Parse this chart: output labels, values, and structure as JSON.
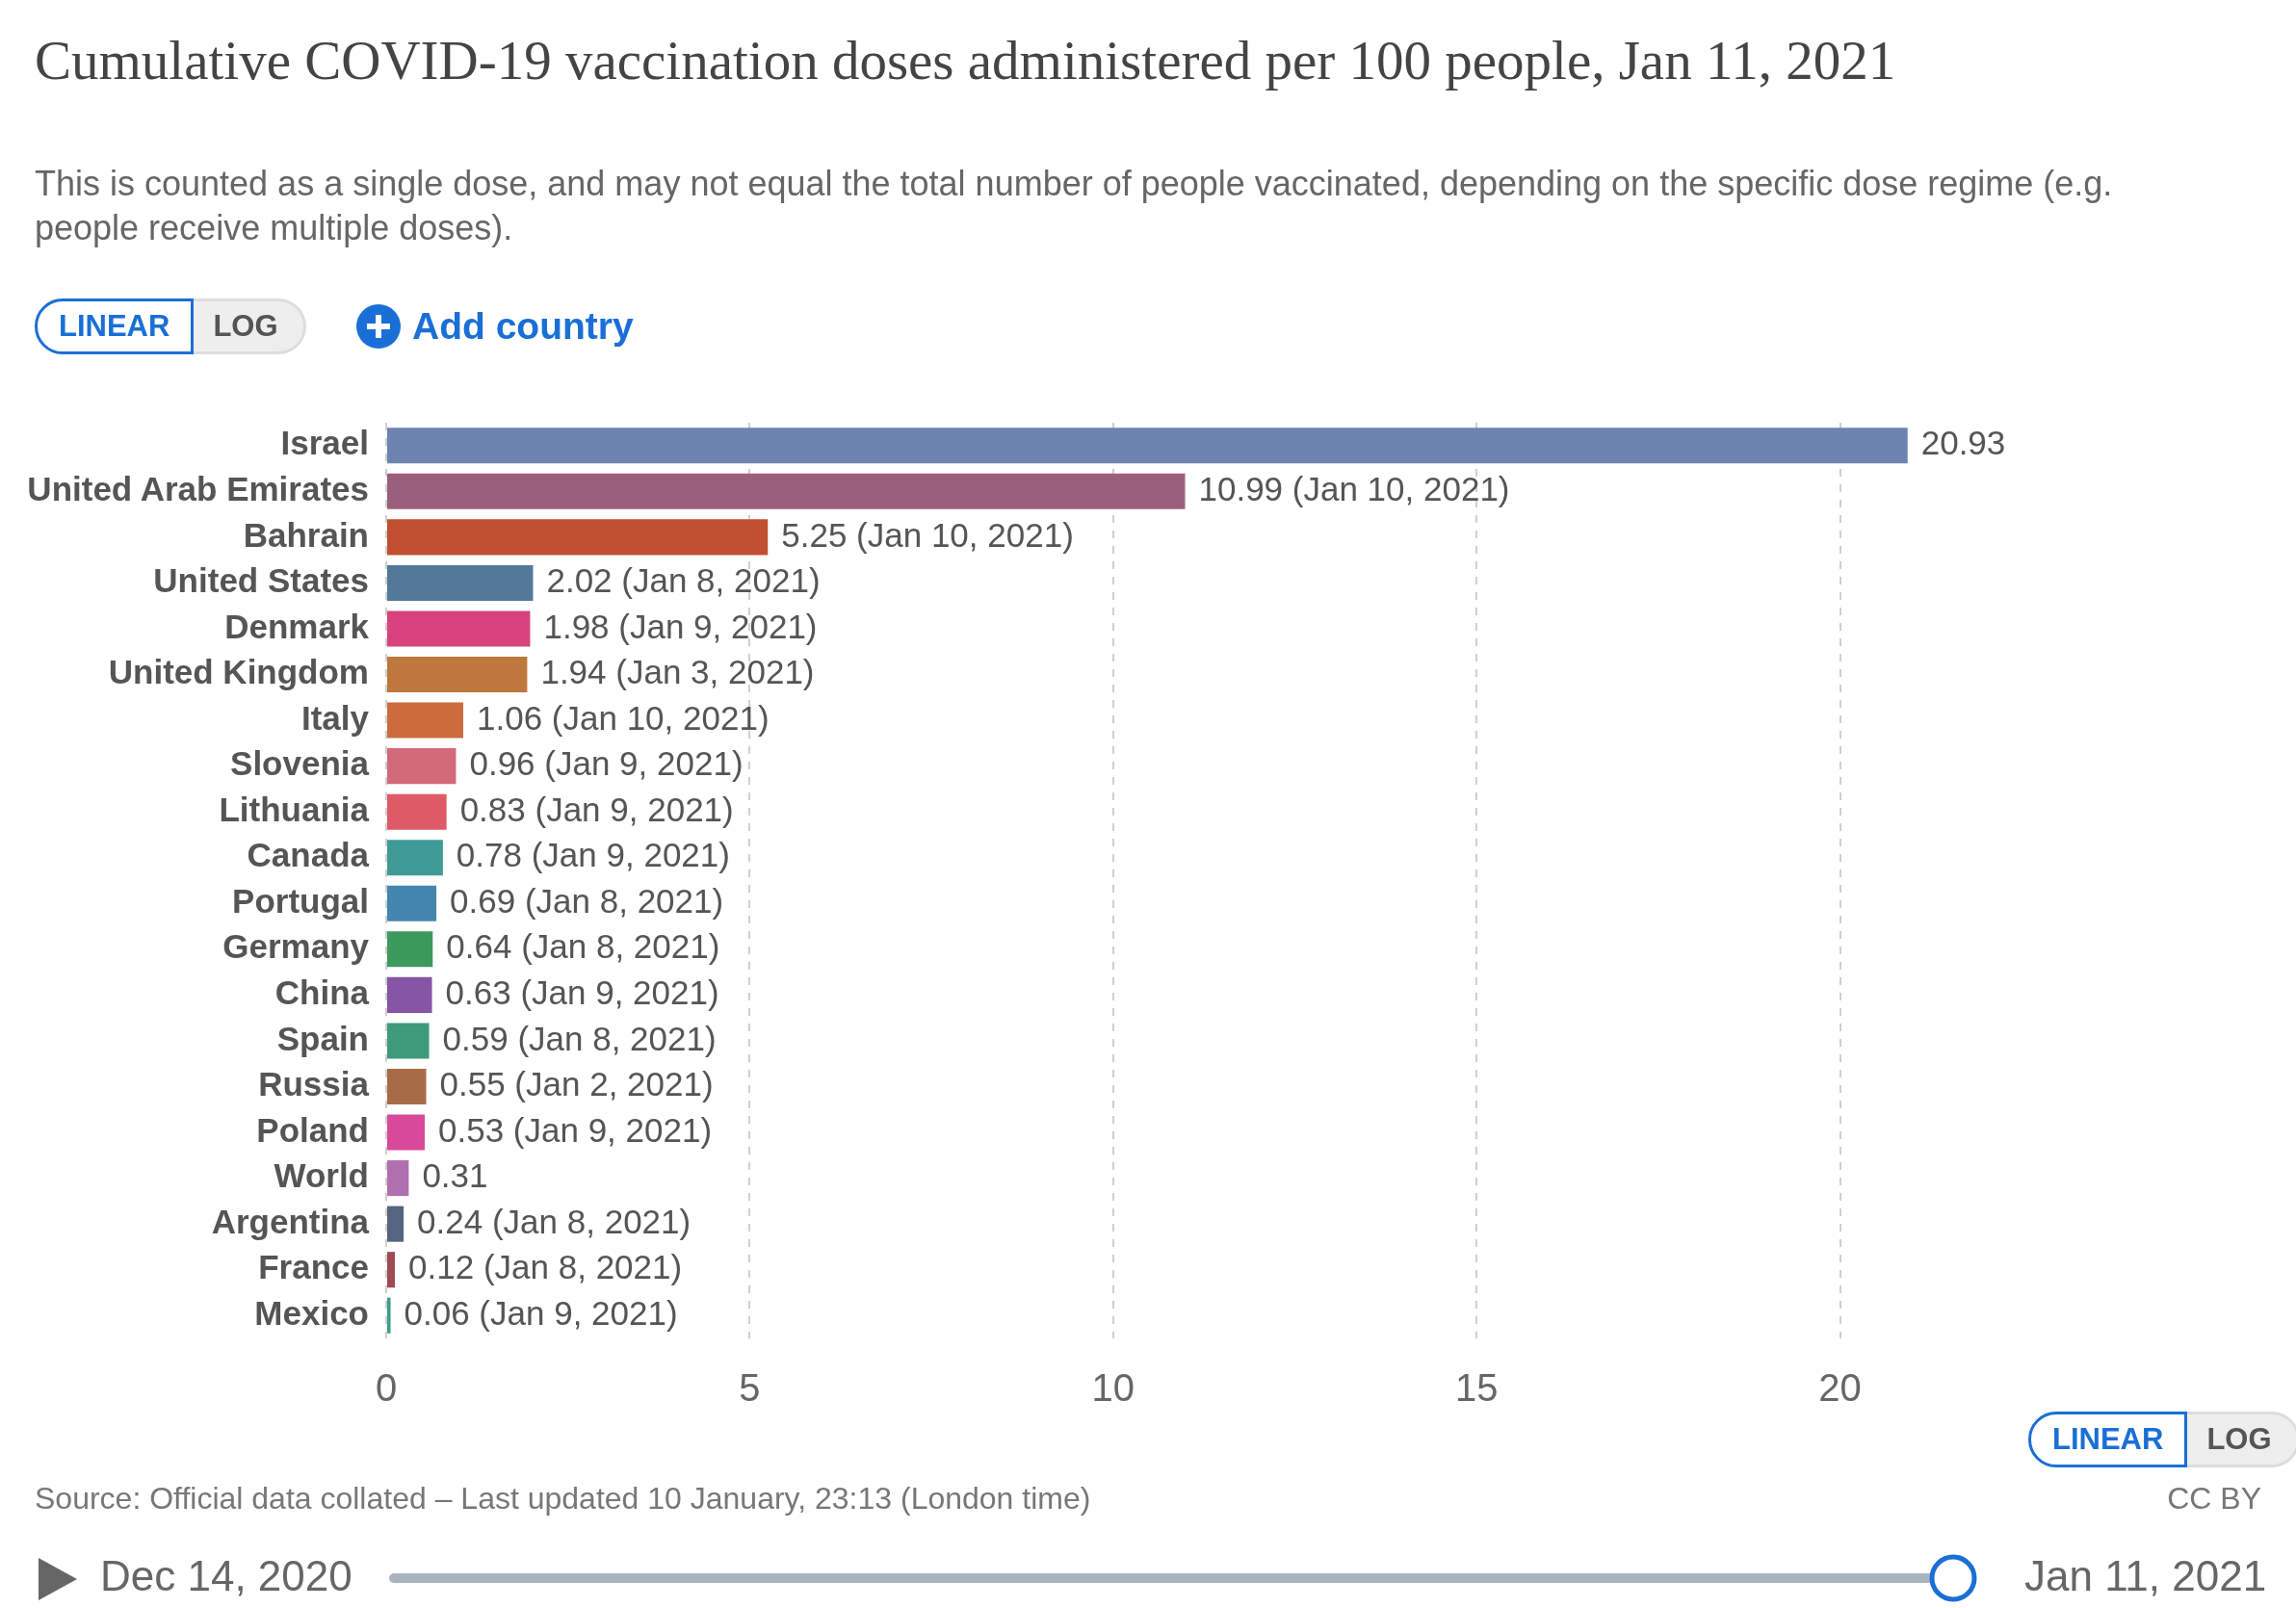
{
  "chart_data": {
    "type": "bar",
    "orientation": "horizontal",
    "title": "Cumulative COVID-19 vaccination doses administered per 100 people, Jan 11, 2021",
    "subtitle": "This is counted as a single dose, and may not equal the total number of people vaccinated, depending on the specific dose regime (e.g. people receive multiple doses).",
    "categories": [
      "Israel",
      "United Arab Emirates",
      "Bahrain",
      "United States",
      "Denmark",
      "United Kingdom",
      "Italy",
      "Slovenia",
      "Lithuania",
      "Canada",
      "Portugal",
      "Germany",
      "China",
      "Spain",
      "Russia",
      "Poland",
      "World",
      "Argentina",
      "France",
      "Mexico"
    ],
    "values": [
      20.93,
      10.99,
      5.25,
      2.02,
      1.98,
      1.94,
      1.06,
      0.96,
      0.83,
      0.78,
      0.69,
      0.64,
      0.63,
      0.59,
      0.55,
      0.53,
      0.31,
      0.24,
      0.12,
      0.06
    ],
    "value_labels": [
      "20.93",
      "10.99 (Jan 10, 2021)",
      "5.25 (Jan 10, 2021)",
      "2.02 (Jan 8, 2021)",
      "1.98 (Jan 9, 2021)",
      "1.94 (Jan 3, 2021)",
      "1.06 (Jan 10, 2021)",
      "0.96 (Jan 9, 2021)",
      "0.83 (Jan 9, 2021)",
      "0.78 (Jan 9, 2021)",
      "0.69 (Jan 8, 2021)",
      "0.64 (Jan 8, 2021)",
      "0.63 (Jan 9, 2021)",
      "0.59 (Jan 8, 2021)",
      "0.55 (Jan 2, 2021)",
      "0.53 (Jan 9, 2021)",
      "0.31",
      "0.24 (Jan 8, 2021)",
      "0.12 (Jan 8, 2021)",
      "0.06 (Jan 9, 2021)"
    ],
    "colors": [
      "#6d83b0",
      "#9b5f7e",
      "#c0502f",
      "#54789a",
      "#d8437e",
      "#be783e",
      "#cc6c3c",
      "#d36a7a",
      "#de5a66",
      "#3f9a96",
      "#4486ad",
      "#3d9a5d",
      "#8755a5",
      "#3d9a7a",
      "#a86b48",
      "#d9499a",
      "#b070b0",
      "#55657f",
      "#a04b55",
      "#3a9e8e"
    ],
    "xlim": [
      0,
      21
    ],
    "xticks": [
      0,
      5,
      10,
      15,
      20
    ],
    "grid": "x",
    "legend": false,
    "annotations": [
      "LINEAR",
      "LOG",
      "Add country",
      "LINEAR",
      "LOG",
      "Source: Official data collated – Last updated 10 January, 23:13 (London time)",
      "CC BY",
      "Dec 14, 2020",
      "Jan 11, 2021"
    ]
  }
}
